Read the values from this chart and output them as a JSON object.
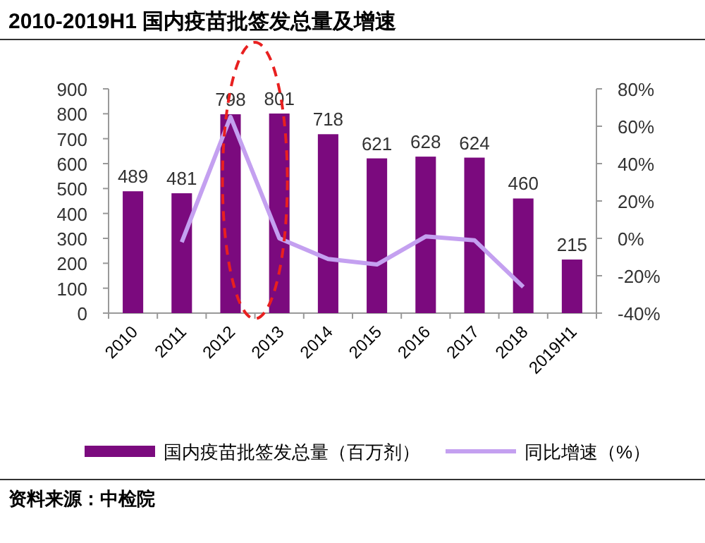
{
  "chart_data": {
    "type": "bar",
    "title": "2010-2019H1 国内疫苗批签发总量及增速",
    "categories": [
      "2010",
      "2011",
      "2012",
      "2013",
      "2014",
      "2015",
      "2016",
      "2017",
      "2018",
      "2019H1"
    ],
    "series": [
      {
        "name": "国内疫苗批签发总量（百万剂）",
        "color": "#7b0a7e",
        "values": [
          489,
          481,
          798,
          801,
          718,
          621,
          628,
          624,
          460,
          215
        ],
        "value_labels": [
          "489",
          "481",
          "798",
          "801",
          "718",
          "621",
          "628",
          "624",
          "460",
          "215"
        ]
      },
      {
        "name": "同比增速（%）",
        "type": "line",
        "axis": "y2",
        "color": "#c4a0f0",
        "values": [
          null,
          -2,
          65,
          0,
          -11,
          -14,
          1,
          -1,
          -26,
          null
        ]
      }
    ],
    "ylim": [
      0,
      900
    ],
    "yticks": [
      0,
      100,
      200,
      300,
      400,
      500,
      600,
      700,
      800,
      900
    ],
    "y2lim": [
      -40,
      80
    ],
    "y2ticks": [
      {
        "value": -40,
        "label": "-40%"
      },
      {
        "value": -20,
        "label": "-20%"
      },
      {
        "value": 0,
        "label": "0%"
      },
      {
        "value": 20,
        "label": "20%"
      },
      {
        "value": 40,
        "label": "40%"
      },
      {
        "value": 60,
        "label": "60%"
      },
      {
        "value": 80,
        "label": "80%"
      }
    ],
    "legend": "bottom",
    "grid": false,
    "marker": "none",
    "annotations": [
      "资料来源：中检院"
    ]
  }
}
